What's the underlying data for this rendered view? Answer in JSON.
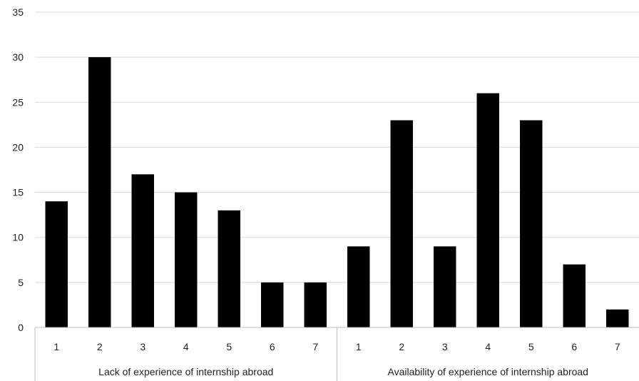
{
  "chart_data": {
    "type": "bar",
    "groups": [
      {
        "label": "Lack of experience of internship abroad",
        "categories": [
          "1",
          "2",
          "3",
          "4",
          "5",
          "6",
          "7"
        ],
        "values": [
          14,
          30,
          17,
          15,
          13,
          5,
          5
        ]
      },
      {
        "label": "Availability of experience of internship abroad",
        "categories": [
          "1",
          "2",
          "3",
          "4",
          "5",
          "6",
          "7"
        ],
        "values": [
          9,
          23,
          9,
          26,
          23,
          7,
          2
        ]
      }
    ],
    "y_ticks": [
      "0",
      "5",
      "10",
      "15",
      "20",
      "25",
      "30",
      "35"
    ],
    "ylim": [
      0,
      35
    ],
    "grid": true,
    "legend": "none",
    "colors": {
      "bar": "#000000",
      "grid": "#d9d9d9",
      "axis": "#bfbfbf"
    }
  }
}
